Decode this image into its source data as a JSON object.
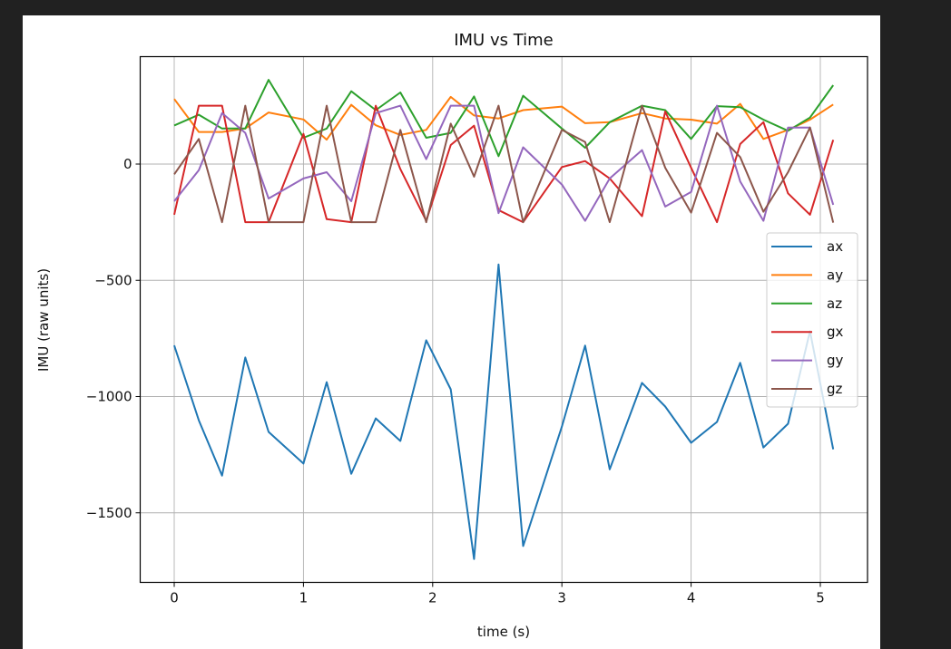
{
  "chart_data": {
    "type": "line",
    "title": "IMU vs Time",
    "xlabel": "time (s)",
    "ylabel": "IMU (raw units)",
    "xlim": [
      -0.26,
      5.32
    ],
    "ylim": [
      -1800,
      465
    ],
    "xticks": [
      0,
      1,
      2,
      3,
      4,
      5
    ],
    "xtick_labels": [
      "0",
      "1",
      "2",
      "3",
      "4",
      "5"
    ],
    "yticks": [
      0,
      -500,
      -1000,
      -1500
    ],
    "ytick_labels": [
      "0",
      "−500",
      "−1000",
      "−1500"
    ],
    "grid": true,
    "legend_position": "center right",
    "x": [
      0.0,
      0.19,
      0.37,
      0.55,
      0.73,
      1.0,
      1.18,
      1.37,
      1.56,
      1.75,
      1.95,
      2.14,
      2.32,
      2.51,
      2.7,
      3.0,
      3.18,
      3.37,
      3.62,
      3.8,
      4.0,
      4.2,
      4.38,
      4.56,
      4.75,
      4.92,
      5.1
    ],
    "series": [
      {
        "name": "ax",
        "color": "#1f77b4",
        "values": [
          -780,
          -1102,
          -1340,
          -832,
          -1152,
          -1288,
          -938,
          -1332,
          -1094,
          -1191,
          -758,
          -969,
          -1699,
          -432,
          -1643,
          -1129,
          -781,
          -1313,
          -941,
          -1043,
          -1199,
          -1109,
          -855,
          -1219,
          -1117,
          -719,
          -1227
        ]
      },
      {
        "name": "ay",
        "color": "#ff7f0e",
        "values": [
          280,
          138,
          138,
          153,
          222,
          192,
          105,
          255,
          167,
          125,
          147,
          289,
          209,
          196,
          232,
          247,
          176,
          180,
          219,
          196,
          191,
          174,
          259,
          108,
          147,
          191,
          256
        ]
      },
      {
        "name": "az",
        "color": "#2ca02c",
        "values": [
          166,
          212,
          153,
          153,
          362,
          113,
          153,
          313,
          232,
          308,
          113,
          134,
          291,
          34,
          294,
          153,
          70,
          180,
          251,
          232,
          108,
          249,
          245,
          191,
          143,
          200,
          339
        ]
      },
      {
        "name": "gx",
        "color": "#d62728",
        "values": [
          -218,
          251,
          251,
          -250,
          -250,
          130,
          -237,
          -250,
          251,
          -22,
          -244,
          82,
          165,
          -198,
          -250,
          -13,
          13,
          -62,
          -224,
          226,
          -16,
          -250,
          86,
          180,
          -126,
          -218,
          104
        ]
      },
      {
        "name": "gy",
        "color": "#9467bd",
        "values": [
          -160,
          -26,
          219,
          134,
          -148,
          -62,
          -35,
          -160,
          219,
          251,
          21,
          251,
          251,
          -211,
          72,
          -88,
          -244,
          -62,
          60,
          -183,
          -120,
          251,
          -75,
          -244,
          157,
          157,
          -175
        ]
      },
      {
        "name": "gz",
        "color": "#8c564b",
        "values": [
          -44,
          108,
          -250,
          251,
          -250,
          -250,
          251,
          -250,
          -250,
          147,
          -250,
          174,
          -54,
          251,
          -250,
          147,
          95,
          -250,
          251,
          -16,
          -209,
          134,
          30,
          -205,
          -35,
          157,
          -252
        ]
      }
    ]
  },
  "figure": {
    "title": "IMU vs Time",
    "xlabel": "time (s)",
    "ylabel": "IMU (raw units)",
    "background": "#ffffff",
    "page_background": "#212121"
  },
  "legend": {
    "items": [
      {
        "label": "ax",
        "color": "#1f77b4"
      },
      {
        "label": "ay",
        "color": "#ff7f0e"
      },
      {
        "label": "az",
        "color": "#2ca02c"
      },
      {
        "label": "gx",
        "color": "#d62728"
      },
      {
        "label": "gy",
        "color": "#9467bd"
      },
      {
        "label": "gz",
        "color": "#8c564b"
      }
    ]
  }
}
